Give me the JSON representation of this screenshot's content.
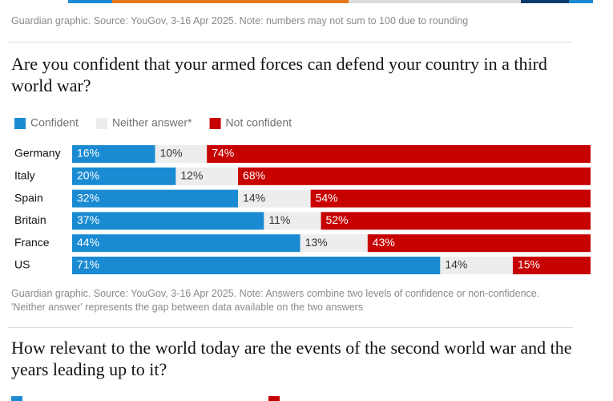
{
  "source_note_top": "Guardian graphic. Source: YouGov, 3-16 Apr 2025. Note: numbers may not sum to 100 due to rounding",
  "chart_data": {
    "type": "stacked-bar-horizontal",
    "title": "Are you confident that your armed forces can defend your country in a third world war?",
    "categories": [
      "Germany",
      "Italy",
      "Spain",
      "Britain",
      "France",
      "US"
    ],
    "series": [
      {
        "name": "Confident",
        "color": "#1a8bd2",
        "values": [
          16,
          20,
          32,
          37,
          44,
          71
        ],
        "value_labels": [
          "16%",
          "20%",
          "32%",
          "37%",
          "44%",
          "71%"
        ]
      },
      {
        "name": "Neither answer*",
        "color": "#ededed",
        "values": [
          10,
          12,
          14,
          11,
          13,
          14
        ],
        "value_labels": [
          "10%",
          "12%",
          "14%",
          "11%",
          "13%",
          "14%"
        ]
      },
      {
        "name": "Not confident",
        "color": "#c70000",
        "values": [
          74,
          68,
          54,
          52,
          43,
          15
        ],
        "value_labels": [
          "74%",
          "68%",
          "54%",
          "52%",
          "43%",
          "15%"
        ]
      }
    ],
    "xlim": [
      0,
      100
    ],
    "note": "Guardian graphic. Source: YouGov, 3-16 Apr 2025. Note: Answers combine two levels of confidence or non-confidence. 'Neither answer' represents the gap between data available on the two answers"
  },
  "next_chart": {
    "title": "How relevant to the world today are the events of the second world war and the years leading up to it?"
  }
}
